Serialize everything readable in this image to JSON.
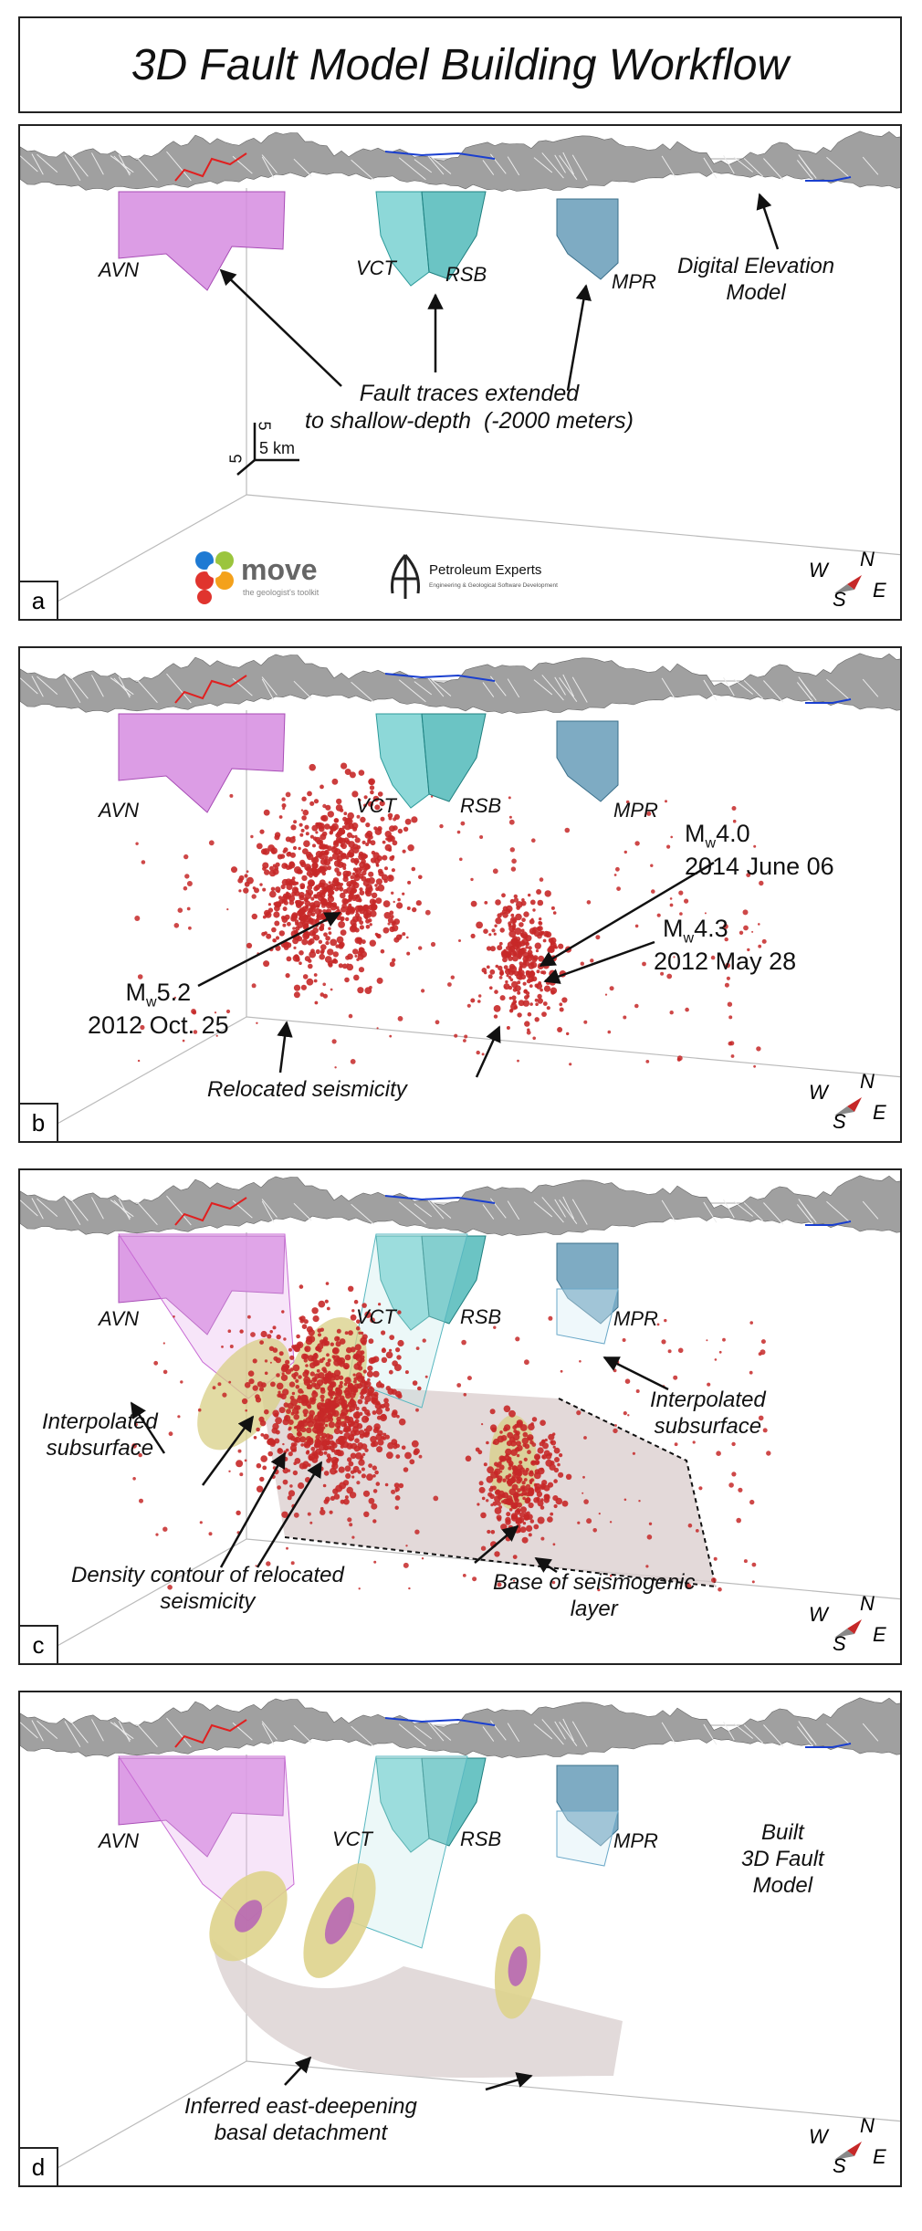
{
  "title": "3D Fault Model Building Workflow",
  "faults": {
    "avn": "AVN",
    "vct": "VCT",
    "rsb": "RSB",
    "mpr": "MPR"
  },
  "compass": {
    "w": "W",
    "n": "N",
    "s": "S",
    "e": "E"
  },
  "colors": {
    "avn": "#d68ce0",
    "vct": "#5cc8c8",
    "rsb": "#3ab0b0",
    "mpr": "#5e96b4",
    "seismicity": "#c62828",
    "dem": "#a0a0a0"
  },
  "panels": {
    "a": {
      "letter": "a",
      "dem_label": "Digital Elevation\nModel",
      "fault_traces_label": "Fault traces extended\nto shallow-depth  (-2000 meters)",
      "scale_vertical": "5",
      "scale_horizontal": "5",
      "scale_km": "5 km",
      "logo_move_name": "move",
      "logo_move_tagline": "the geologist's toolkit",
      "logo_pe_name": "Petroleum Experts",
      "logo_pe_tagline": "Engineering & Geological Software Development"
    },
    "b": {
      "letter": "b",
      "eq1_mag": "4.0",
      "eq1_date": "2014 June 06",
      "eq2_mag": "4.3",
      "eq2_date": "2012 May 28",
      "eq3_mag": "5.2",
      "eq3_date": "2012 Oct. 25",
      "mw_m": "M",
      "mw_sub": "w",
      "seismicity_label": "Relocated seismicity"
    },
    "c": {
      "letter": "c",
      "interp_left": "Interpolated\nsubsurface",
      "interp_right": "Interpolated\nsubsurface",
      "density_label": "Density contour of relocated\nseismicity",
      "base_label": "Base of seismogenic\nlayer"
    },
    "d": {
      "letter": "d",
      "built_label": "Built\n3D Fault\nModel",
      "detachment_label": "Inferred east-deepening\nbasal detachment"
    }
  }
}
